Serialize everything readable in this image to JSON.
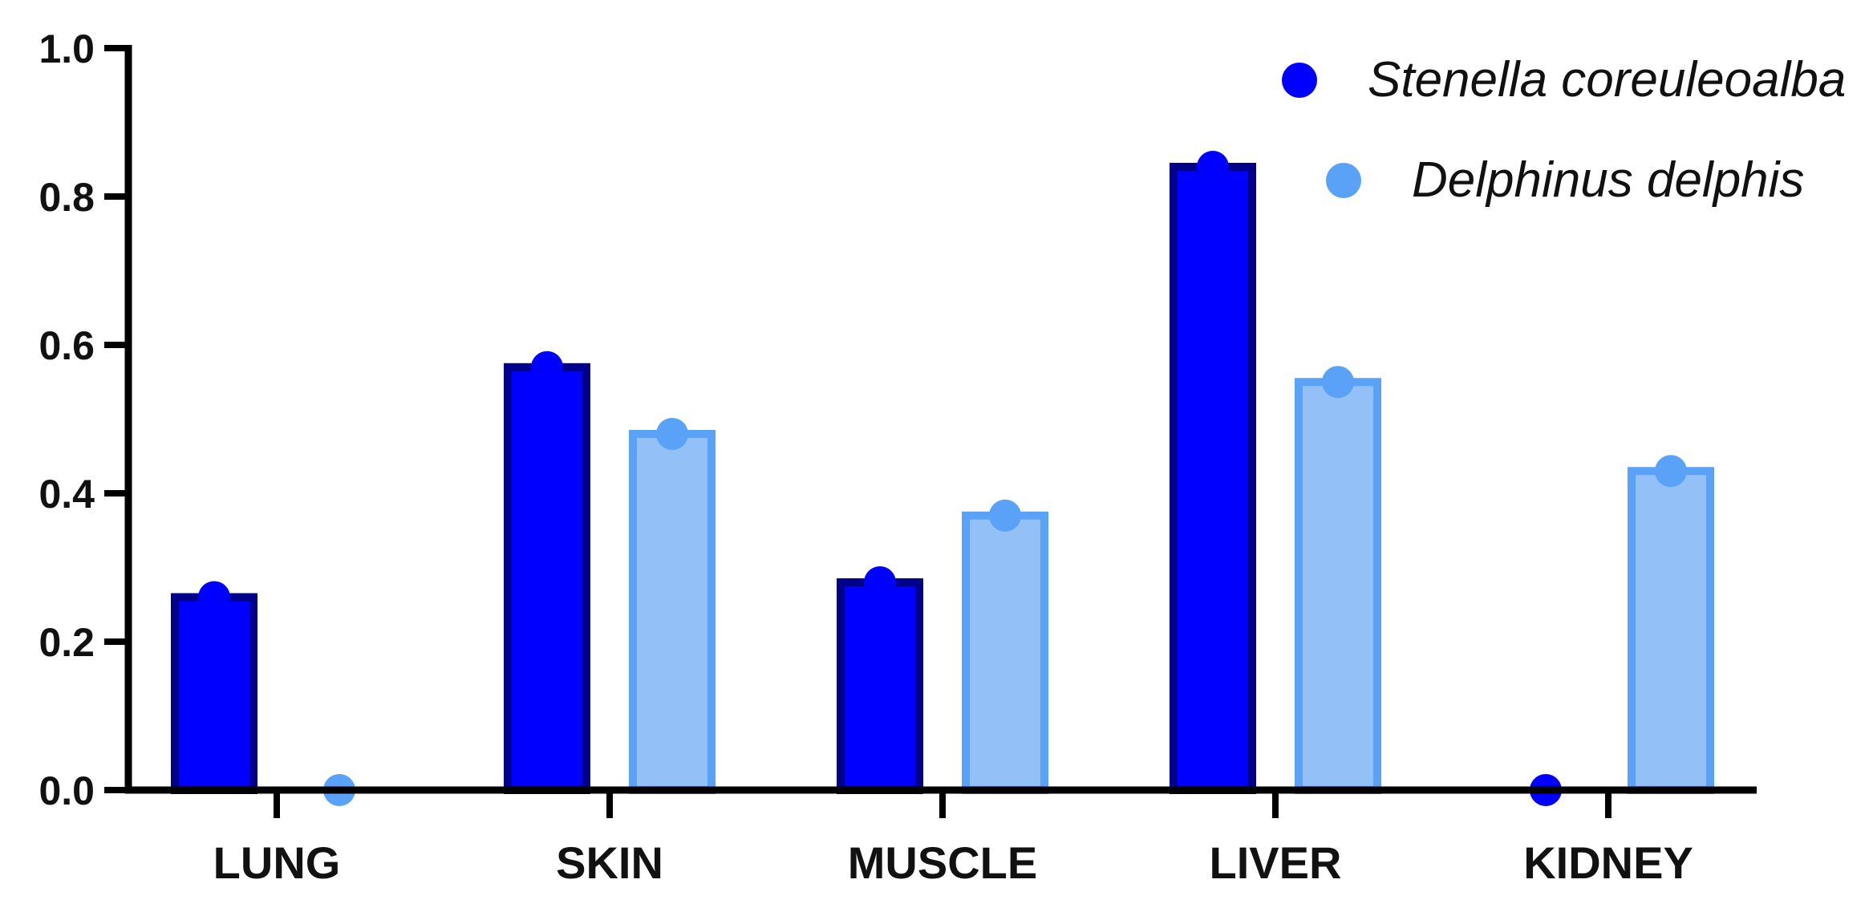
{
  "chart_data": {
    "type": "bar",
    "title": "",
    "xlabel": "",
    "ylabel": "",
    "categories": [
      "LUNG",
      "SKIN",
      "MUSCLE",
      "LIVER",
      "KIDNEY"
    ],
    "ylim": [
      0,
      1.0
    ],
    "yticks": [
      "0.0",
      "0.2",
      "0.4",
      "0.6",
      "0.8",
      "1.0"
    ],
    "grid": false,
    "legend_position": "top-right",
    "series": [
      {
        "name": "Stenella coreuleoalba",
        "values": [
          0.26,
          0.57,
          0.28,
          0.84,
          0.0
        ],
        "fill": "#0000ff",
        "stroke": "#00008b",
        "marker": "#0000ff"
      },
      {
        "name": "Delphinus delphis",
        "values": [
          0.0,
          0.48,
          0.37,
          0.55,
          0.43
        ],
        "fill": "#93c0f7",
        "stroke": "#5aa2f7",
        "marker": "#5aa2f7"
      }
    ]
  }
}
